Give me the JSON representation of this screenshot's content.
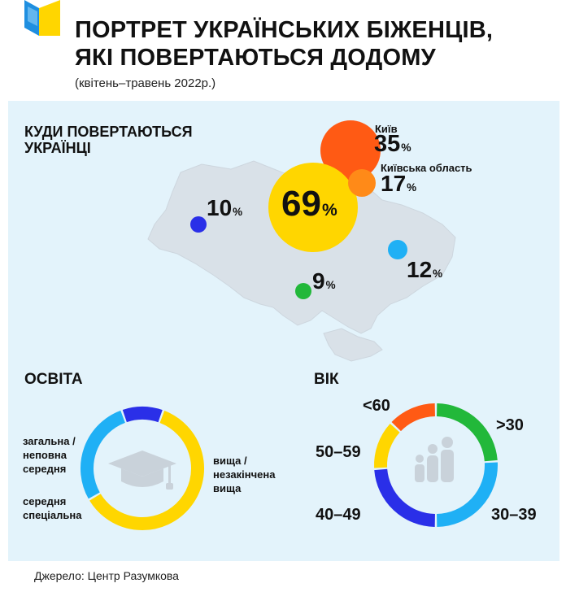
{
  "header": {
    "title_line1": "ПОРТРЕТ УКРАЇНСЬКИХ БІЖЕНЦІВ,",
    "title_line2": "ЯКІ ПОВЕРТАЮТЬСЯ ДОДОМУ",
    "subtitle": "(квітень–травень 2022р.)"
  },
  "colors": {
    "yellow": "#ffd600",
    "blue": "#2a2fe8",
    "lightblue": "#1fb0f5",
    "green": "#22b83a",
    "orange": "#ff5a14",
    "lightorange": "#ff8a18",
    "panel": "#e3f3fb",
    "map": "#d9e1e8"
  },
  "chart_data": [
    {
      "type": "bubble",
      "title_line1": "КУДИ ПОВЕРТАЮТЬСЯ",
      "title_line2": "УКРАЇНЦІ",
      "unit": "%",
      "points": [
        {
          "name": "",
          "value": 69,
          "color": "#ffd600"
        },
        {
          "name": "Київ",
          "value": 35,
          "color": "#ff5a14"
        },
        {
          "name": "Київська область",
          "value": 17,
          "color": "#ff8a18"
        },
        {
          "name": "",
          "value": 10,
          "color": "#2a2fe8"
        },
        {
          "name": "",
          "value": 12,
          "color": "#1fb0f5"
        },
        {
          "name": "",
          "value": 9,
          "color": "#22b83a"
        }
      ]
    },
    {
      "type": "donut",
      "title": "ОСВІТА",
      "segments": [
        {
          "label_line1": "вища /",
          "label_line2": "незакінчена",
          "label_line3": "вища",
          "value": 61,
          "color": "#ffd600"
        },
        {
          "label_line1": "середня",
          "label_line2": "спеціальна",
          "value": 28,
          "color": "#1fb0f5"
        },
        {
          "label_line1": "загальна /",
          "label_line2": "неповна",
          "label_line3": "середня",
          "value": 11,
          "color": "#2a2fe8"
        }
      ]
    },
    {
      "type": "donut",
      "title": "ВІК",
      "segments": [
        {
          "label": ">30",
          "value": 24,
          "color": "#22b83a"
        },
        {
          "label": "30–39",
          "value": 26,
          "color": "#1fb0f5"
        },
        {
          "label": "40–49",
          "value": 24,
          "color": "#2a2fe8"
        },
        {
          "label": "50–59",
          "value": 13,
          "color": "#ffd600"
        },
        {
          "label": "<60",
          "value": 13,
          "color": "#ff5a14"
        }
      ]
    }
  ],
  "source": "Джерело: Центр Разумкова"
}
